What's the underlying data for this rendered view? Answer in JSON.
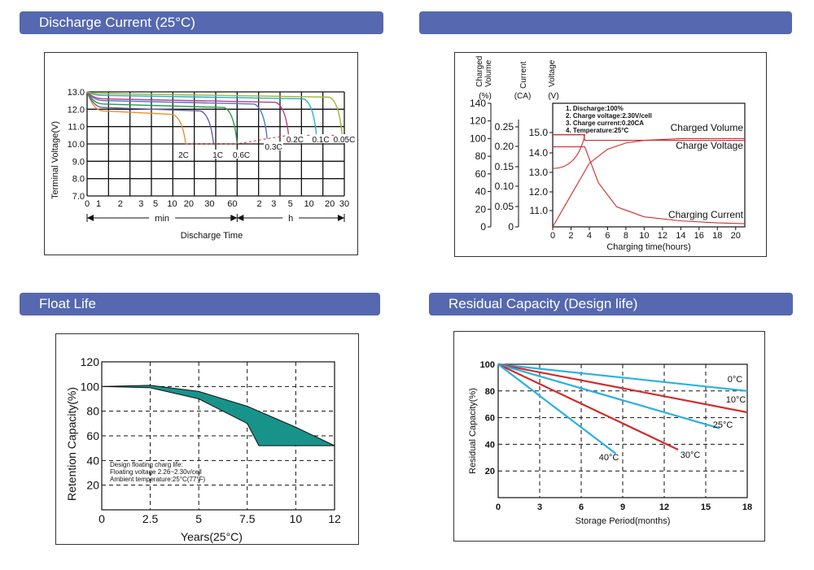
{
  "headers": {
    "discharge": "Discharge Current (25°C)",
    "charge": "",
    "float": "Float Life",
    "residual": "Residual Capacity (Design life)"
  },
  "chart_data": [
    {
      "id": "discharge",
      "type": "line",
      "title": "Discharge Current (25°C)",
      "xlabel": "Discharge Time",
      "ylabel": "Terminal Voltage(V)",
      "ylim": [
        7.0,
        13.0
      ],
      "yticks": [
        "13.0",
        "12.0",
        "11.0",
        "10.0",
        "9.0",
        "8.0",
        "7.0"
      ],
      "y_tick_values": [
        13,
        12,
        11,
        10,
        9,
        8,
        7
      ],
      "xtick_labels": [
        "0",
        "1",
        "2",
        "3",
        "5",
        "10",
        "20",
        "30",
        "60",
        "2",
        "3",
        "5",
        "10",
        "20",
        "30"
      ],
      "x_segment_labels": {
        "min": "min",
        "h": "h"
      },
      "grid": true,
      "series": [
        {
          "name": "2C",
          "color": "#e8902a",
          "end_x": 4.6,
          "flat_v": 11.9,
          "end_v": 10.0
        },
        {
          "name": "1C",
          "color": "#6b5aa8",
          "end_x": 5.9,
          "flat_v": 12.1,
          "end_v": 10.0
        },
        {
          "name": "0.6C",
          "color": "#2a9a4a",
          "end_x": 7.0,
          "flat_v": 12.3,
          "end_v": 10.0
        },
        {
          "name": "0.3C",
          "color": "#4a78c8",
          "end_x": 8.4,
          "flat_v": 12.5,
          "end_v": 10.3
        },
        {
          "name": "0.2C",
          "color": "#c03a8a",
          "end_x": 9.4,
          "flat_v": 12.6,
          "end_v": 10.5
        },
        {
          "name": "0.1C",
          "color": "#2ab0c8",
          "end_x": 10.7,
          "flat_v": 12.8,
          "end_v": 10.5
        },
        {
          "name": "0.05C",
          "color": "#9ab82a",
          "end_x": 11.9,
          "flat_v": 12.9,
          "end_v": 10.5
        }
      ]
    },
    {
      "id": "charge",
      "type": "line",
      "xlabel": "Charging time(hours)",
      "xticks": [
        0,
        2,
        4,
        6,
        8,
        10,
        12,
        14,
        16,
        18,
        20
      ],
      "xlim": [
        0,
        21
      ],
      "axes": {
        "volume": {
          "header": [
            "Charged",
            "Volume",
            "(%)"
          ],
          "ticks": [
            0,
            20,
            40,
            60,
            80,
            100,
            120,
            140
          ]
        },
        "current": {
          "header": [
            "Current",
            "(CA)"
          ],
          "ticks": [
            "0",
            "0.05",
            "0.10",
            "0.15",
            "0.20",
            "0.25"
          ]
        },
        "voltage": {
          "header": [
            "Voltage",
            "(V)"
          ],
          "ticks": [
            "11.0",
            "12.0",
            "13.0",
            "14.0",
            "15.0"
          ]
        }
      },
      "notes": [
        "1. Discharge:100%",
        "2. Charge voltage:2.30V/cell",
        "3. Charge current:0.20CA",
        "4. Temperature:25°C"
      ],
      "series": [
        {
          "name": "Charged Volume",
          "color": "#d42a2a",
          "x": [
            0,
            1,
            2,
            3,
            4,
            6,
            8,
            10,
            12,
            14,
            16,
            18,
            20,
            21
          ],
          "y": [
            0,
            18,
            36,
            54,
            72,
            88,
            95,
            98,
            99,
            100,
            100,
            100,
            100,
            100
          ]
        },
        {
          "name": "Charge Voltage",
          "color": "#d42a2a",
          "x": [
            0,
            3.5,
            3.6,
            21
          ],
          "y_volts": [
            14.1,
            14.1,
            13.85,
            13.85
          ]
        },
        {
          "name": "Charging Current",
          "color": "#d42a2a",
          "x": [
            0,
            3.5,
            5,
            7,
            10,
            14,
            18,
            21
          ],
          "y_ca": [
            0.2,
            0.2,
            0.11,
            0.05,
            0.025,
            0.015,
            0.01,
            0.008
          ]
        }
      ]
    },
    {
      "id": "float",
      "type": "area",
      "title": "Float Life",
      "xlabel": "Years(25°C)",
      "ylabel": "Retention Capacity(%)",
      "xticks": [
        "0",
        "2.5",
        "5",
        "7.5",
        "10",
        "12"
      ],
      "x_tick_values": [
        0,
        2.5,
        5,
        7.5,
        10,
        12
      ],
      "yticks": [
        "20",
        "40",
        "60",
        "80",
        "100",
        "120"
      ],
      "y_tick_values": [
        20,
        40,
        60,
        80,
        100,
        120
      ],
      "xlim": [
        0,
        12.5
      ],
      "ylim": [
        0,
        120
      ],
      "notes": [
        "Design floating charg life:",
        "Floating voltage 2.26~2.30v/cell",
        "Ambient temperature:25°C(77°F)"
      ],
      "band_upper": {
        "x": [
          0,
          2.5,
          5,
          7.5,
          10,
          12
        ],
        "y": [
          100,
          101,
          96,
          84,
          67,
          52
        ]
      },
      "band_lower": {
        "x": [
          0,
          2.5,
          5,
          7.5,
          8.1,
          12
        ],
        "y": [
          100,
          99,
          90,
          70,
          52,
          52
        ]
      },
      "fill_color": "#17938a"
    },
    {
      "id": "residual",
      "type": "line",
      "title": "Residual Capacity (Design life)",
      "xlabel": "Storage Period(months)",
      "ylabel": "Residual Capacity(%)",
      "xticks": [
        0,
        3,
        6,
        9,
        12,
        15,
        18
      ],
      "yticks": [
        20,
        40,
        60,
        80,
        100
      ],
      "xlim": [
        0,
        18
      ],
      "ylim": [
        0,
        100
      ],
      "series": [
        {
          "name": "0°C",
          "color": "#2ab0e0",
          "x": [
            0,
            18
          ],
          "y": [
            100,
            80
          ]
        },
        {
          "name": "10°C",
          "color": "#d42a2a",
          "x": [
            0,
            18
          ],
          "y": [
            100,
            64
          ]
        },
        {
          "name": "25°C",
          "color": "#2ab0e0",
          "x": [
            0,
            16
          ],
          "y": [
            100,
            52
          ]
        },
        {
          "name": "30°C",
          "color": "#d42a2a",
          "x": [
            0,
            13
          ],
          "y": [
            100,
            36
          ]
        },
        {
          "name": "40°C",
          "color": "#2ab0e0",
          "x": [
            0,
            8.5
          ],
          "y": [
            100,
            33
          ]
        }
      ]
    }
  ]
}
